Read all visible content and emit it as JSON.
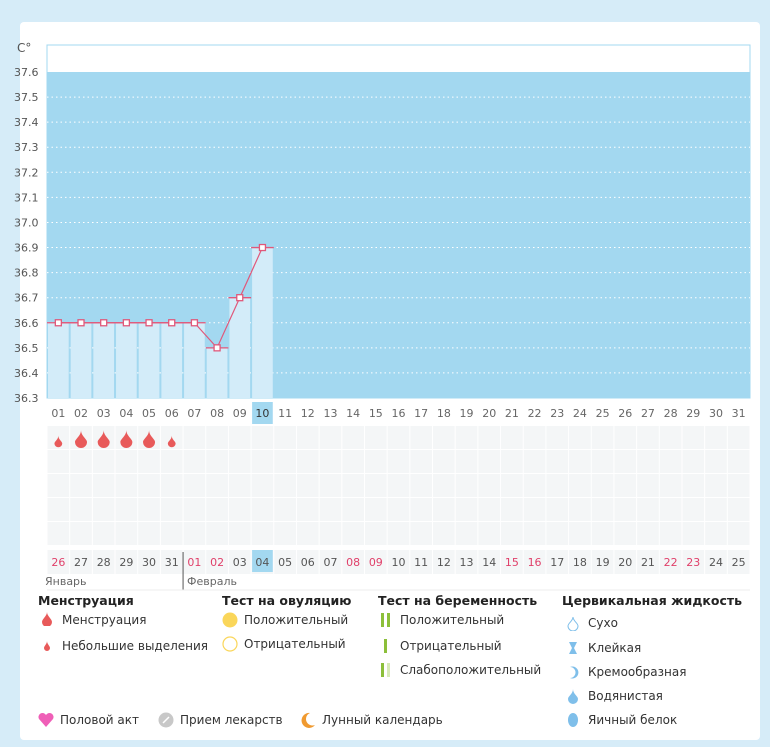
{
  "chart_data": {
    "type": "line",
    "ylabel": "C°",
    "ylim": [
      36.3,
      37.6
    ],
    "yticks": [
      "37.6",
      "37.5",
      "37.4",
      "37.3",
      "37.2",
      "37.1",
      "37.0",
      "36.9",
      "36.8",
      "36.7",
      "36.6",
      "36.5",
      "36.4",
      "36.3"
    ],
    "cycle_days": [
      "01",
      "02",
      "03",
      "04",
      "05",
      "06",
      "07",
      "08",
      "09",
      "10",
      "11",
      "12",
      "13",
      "14",
      "15",
      "16",
      "17",
      "18",
      "19",
      "20",
      "21",
      "22",
      "23",
      "24",
      "25",
      "26",
      "27",
      "28",
      "29",
      "30",
      "31"
    ],
    "current_day_index": 9,
    "temperatures": [
      36.6,
      36.6,
      36.6,
      36.6,
      36.6,
      36.6,
      36.6,
      36.5,
      36.7,
      36.9
    ],
    "menstruation": [
      "light",
      "heavy",
      "heavy",
      "heavy",
      "heavy",
      "light"
    ],
    "dates": [
      "26",
      "27",
      "28",
      "29",
      "30",
      "31",
      "01",
      "02",
      "03",
      "04",
      "05",
      "06",
      "07",
      "08",
      "09",
      "10",
      "11",
      "12",
      "13",
      "14",
      "15",
      "16",
      "17",
      "18",
      "19",
      "20",
      "21",
      "22",
      "23",
      "24",
      "25"
    ],
    "weekend_date_indices": [
      0,
      6,
      7,
      13,
      14,
      20,
      21,
      27,
      28
    ],
    "months": [
      "Январь",
      "Февраль"
    ],
    "colors": {
      "fill": "#a3d8f0",
      "bar": "#d3ecf9",
      "line": "#e0587a",
      "weekend": "#e0406a",
      "highlight": "#a3d8f0",
      "drop": "#e85a5a"
    }
  },
  "legend": {
    "menstruation": {
      "title": "Менструация",
      "items": [
        "Менструация",
        "Небольшие выделения"
      ]
    },
    "ovulation": {
      "title": "Тест на овуляцию",
      "items": [
        "Положительный",
        "Отрицательный"
      ]
    },
    "pregnancy": {
      "title": "Тест на беременность",
      "items": [
        "Положительный",
        "Отрицательный",
        "Слабоположительный"
      ]
    },
    "cervical": {
      "title": "Цервикальная жидкость",
      "items": [
        "Сухо",
        "Клейкая",
        "Кремообразная",
        "Водянистая",
        "Яичный белок"
      ]
    },
    "other": [
      "Половой акт",
      "Прием лекарств",
      "Лунный календарь"
    ]
  }
}
